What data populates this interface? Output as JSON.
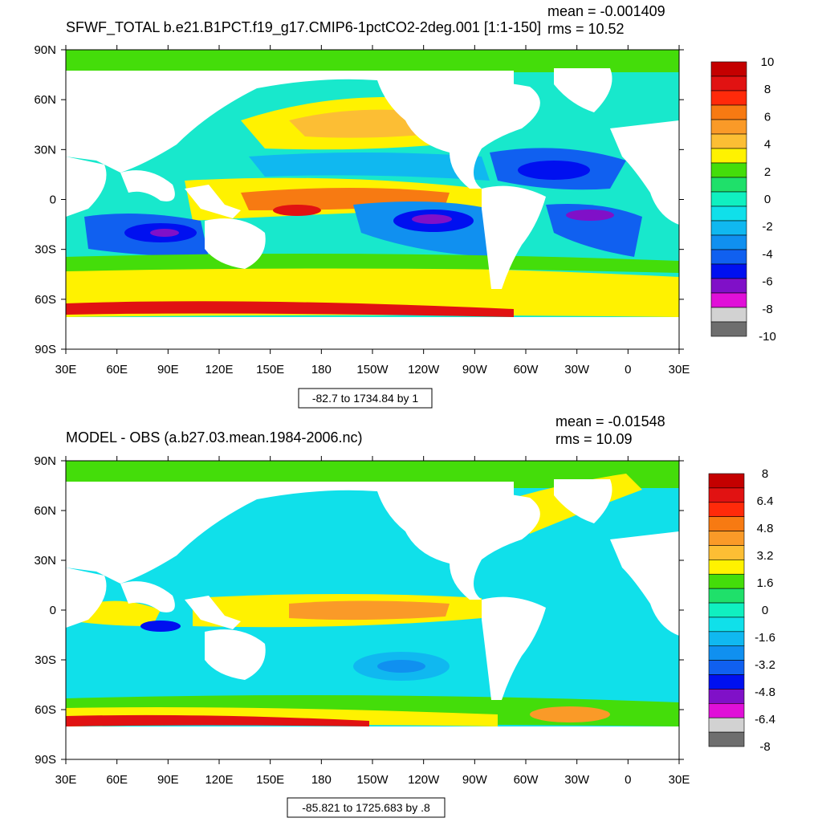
{
  "chart_data": [
    {
      "type": "heatmap",
      "title": "SFWF_TOTAL b.e21.B1PCT.f19_g17.CMIP6-1pctCO2-2deg.001 [1:1-150]",
      "stats": {
        "mean": "mean = -0.001409",
        "rms": "rms = 10.52"
      },
      "range_label": "-82.7 to 1734.84 by 1",
      "x_ticks": [
        "30E",
        "60E",
        "90E",
        "120E",
        "150E",
        "180",
        "150W",
        "120W",
        "90W",
        "60W",
        "30W",
        "0",
        "30E"
      ],
      "y_ticks": [
        "90N",
        "60N",
        "30N",
        "0",
        "30S",
        "60S",
        "90S"
      ],
      "colorbar": {
        "labels": [
          "10",
          "8",
          "6",
          "4",
          "2",
          "0",
          "-2",
          "-4",
          "-6",
          "-8",
          "-10"
        ],
        "colors": [
          "#c40000",
          "#e11212",
          "#ff2a0a",
          "#f77a12",
          "#fa9a28",
          "#fcbe34",
          "#fff200",
          "#44dd0a",
          "#1fe06a",
          "#10f0c0",
          "#10e0ea",
          "#10b8f0",
          "#1090f0",
          "#1060f0",
          "#0010f0",
          "#8010c8",
          "#e010d8",
          "#d2d2d2",
          "#6e6e6e"
        ]
      }
    },
    {
      "type": "heatmap",
      "title": "MODEL - OBS (a.b27.03.mean.1984-2006.nc)",
      "stats": {
        "mean": "mean = -0.01548",
        "rms": "rms = 10.09"
      },
      "range_label": "-85.821 to 1725.683 by .8",
      "x_ticks": [
        "30E",
        "60E",
        "90E",
        "120E",
        "150E",
        "180",
        "150W",
        "120W",
        "90W",
        "60W",
        "30W",
        "0",
        "30E"
      ],
      "y_ticks": [
        "90N",
        "60N",
        "30N",
        "0",
        "30S",
        "60S",
        "90S"
      ],
      "colorbar": {
        "labels": [
          "8",
          "6.4",
          "4.8",
          "3.2",
          "1.6",
          "0",
          "-1.6",
          "-3.2",
          "-4.8",
          "-6.4",
          "-8"
        ],
        "colors": [
          "#c40000",
          "#e11212",
          "#ff2a0a",
          "#f77a12",
          "#fa9a28",
          "#fcbe34",
          "#fff200",
          "#44dd0a",
          "#1fe06a",
          "#10f0c0",
          "#10e0ea",
          "#10b8f0",
          "#1090f0",
          "#1060f0",
          "#0010f0",
          "#8010c8",
          "#e010d8",
          "#d2d2d2",
          "#6e6e6e"
        ]
      }
    }
  ]
}
